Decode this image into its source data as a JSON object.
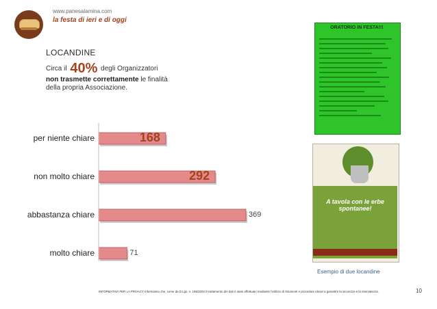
{
  "header": {
    "site_url": "www.panesalamina.com",
    "tagline": "la festa di ieri e di oggi"
  },
  "section": {
    "title": "LOCANDINE",
    "intro_prefix": "Circa il",
    "percentage": "40%",
    "intro_suffix": "degli Organizzatori",
    "bold_text": "non trasmette correttamente",
    "line2_suffix": "le finalità",
    "line3": "della propria Associazione."
  },
  "chart_data": {
    "type": "bar",
    "orientation": "horizontal",
    "categories": [
      "per niente chiare",
      "non molto chiare",
      "abbastanza chiare",
      "molto chiare"
    ],
    "values": [
      168,
      292,
      369,
      71
    ],
    "value_labels": [
      "168",
      "292",
      "369",
      "71"
    ],
    "highlighted": [
      true,
      true,
      false,
      false
    ],
    "bar_color": "#e58a8a",
    "bar_edge_color": "#b85050",
    "highlight_label_color": "#a4421f",
    "grid": false,
    "legend": "none"
  },
  "posters": {
    "poster1_title": "ORATORIO IN FESTA!!!",
    "poster2_headline": "A tavola con le erbe spontanee!",
    "caption": "Esempio di due locandine"
  },
  "footer": {
    "note": "INFORMATIVA PER LA PRIVACY Informiamo che, come da D.Lgs. n. 196/2003 il trattamento dei dati è stato effettuato mediante l'utilizzo di strumenti e procedure idonei a garantire la sicurezza e la riservatezza.",
    "page_number": "10"
  }
}
